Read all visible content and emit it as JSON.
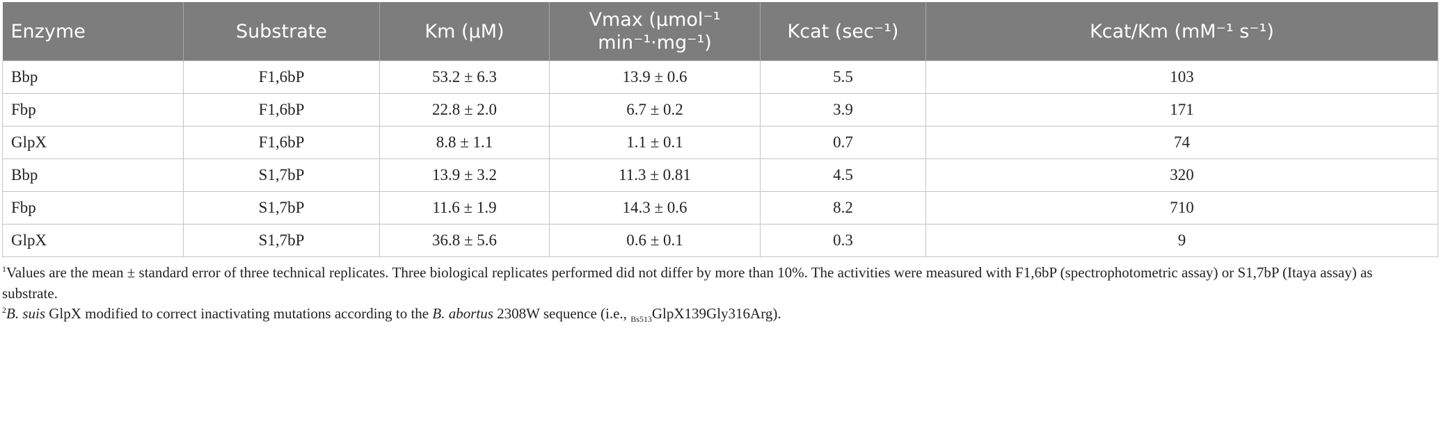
{
  "table": {
    "headers": [
      "Enzyme",
      "Substrate",
      "Km (μM)",
      "Vmax (μmol⁻¹ min⁻¹·mg⁻¹)",
      "Kcat (sec⁻¹)",
      "Kcat/Km (mM⁻¹ s⁻¹)"
    ],
    "rows": [
      [
        "Bbp",
        "F1,6bP",
        "53.2 ± 6.3",
        "13.9 ± 0.6",
        "5.5",
        "103"
      ],
      [
        "Fbp",
        "F1,6bP",
        "22.8 ± 2.0",
        "6.7 ± 0.2",
        "3.9",
        "171"
      ],
      [
        "GlpX",
        "F1,6bP",
        "8.8 ± 1.1",
        "1.1 ± 0.1",
        "0.7",
        "74"
      ],
      [
        "Bbp",
        "S1,7bP",
        "13.9 ± 3.2",
        "11.3 ± 0.81",
        "4.5",
        "320"
      ],
      [
        "Fbp",
        "S1,7bP",
        "11.6 ± 1.9",
        "14.3 ± 0.6",
        "8.2",
        "710"
      ],
      [
        "GlpX",
        "S1,7bP",
        "36.8 ± 5.6",
        "0.6 ± 0.1",
        "0.3",
        "9"
      ]
    ]
  },
  "footnotes": [
    {
      "marker": "1",
      "parts": [
        "Values are the mean ± standard error of three technical replicates. Three biological replicates performed did not differ by more than 10%. The activities were measured with F1,6bP (spectrophotometric assay) or S1,7bP (Itaya assay) as substrate."
      ]
    },
    {
      "marker": "2",
      "parts": [
        "B. suis",
        " GlpX modified to correct inactivating mutations according to the ",
        "B. abortus",
        " 2308W sequence (i.e., ",
        "Bs513",
        "GlpX139Gly316Arg)."
      ]
    }
  ]
}
